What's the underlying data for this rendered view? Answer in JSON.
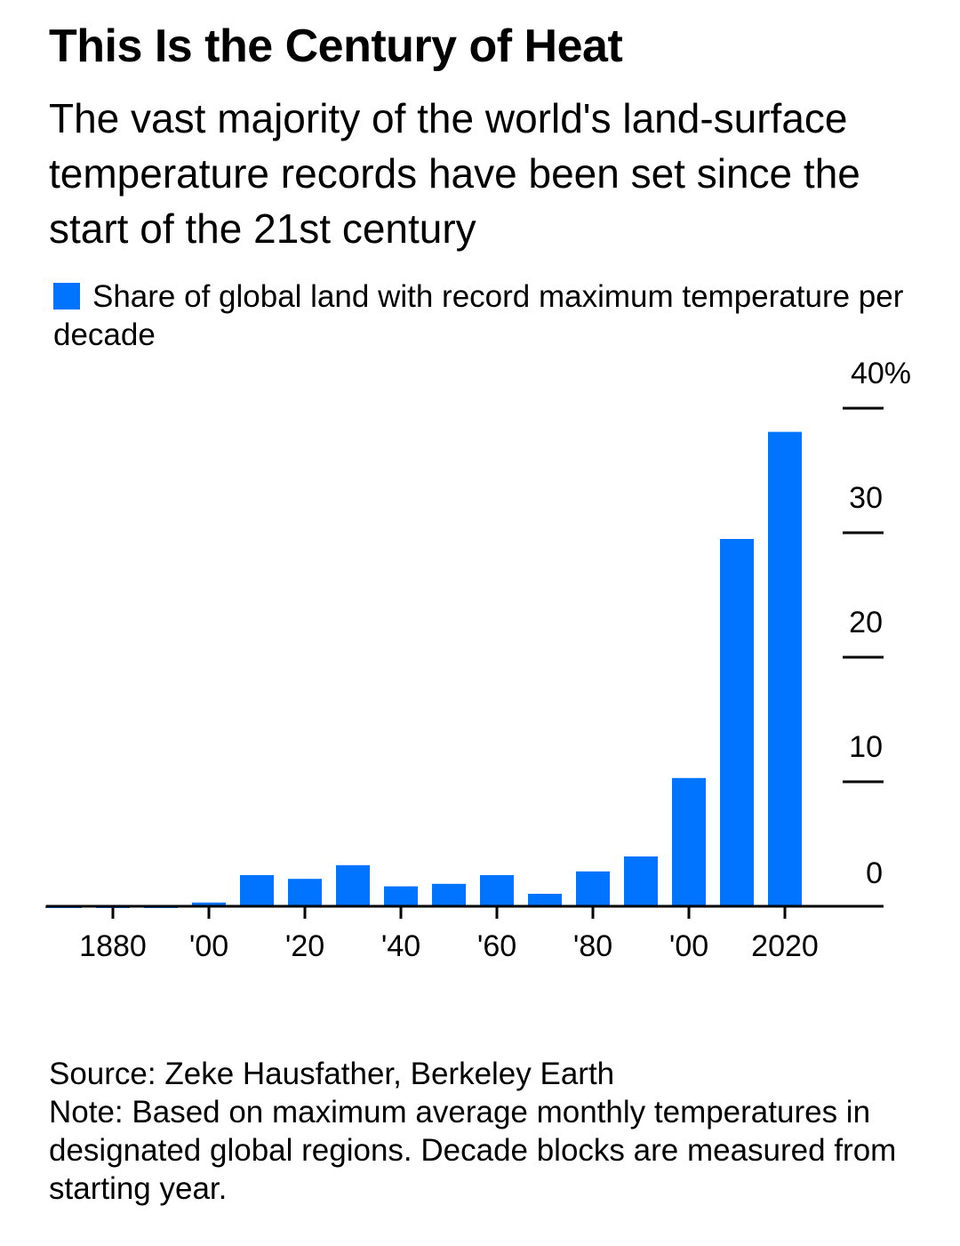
{
  "chart_data": {
    "type": "bar",
    "title": "This Is the Century of Heat",
    "subtitle": "The vast majority of the world's land-surface temperature records have been set since the start of the 21st century",
    "legend": [
      "Share of global land with record maximum temperature per decade"
    ],
    "categories": [
      1870,
      1880,
      1890,
      1900,
      1910,
      1920,
      1930,
      1940,
      1950,
      1960,
      1970,
      1980,
      1990,
      2000,
      2010,
      2020
    ],
    "values": [
      0.1,
      0.1,
      0.1,
      0.3,
      2.5,
      2.2,
      3.3,
      1.6,
      1.8,
      2.5,
      1.0,
      2.8,
      4.0,
      10.3,
      29.5,
      38.1
    ],
    "ylim": [
      0,
      40
    ],
    "yticks": [
      0,
      10,
      20,
      30,
      40
    ],
    "ytick_labels": [
      "0",
      "10",
      "20",
      "30",
      "40%"
    ],
    "xticks": [
      1880,
      1900,
      1920,
      1940,
      1960,
      1980,
      2000,
      2020
    ],
    "xtick_labels": [
      "1880",
      "'00",
      "'20",
      "'40",
      "'60",
      "'80",
      "'00",
      "2020"
    ],
    "ylabel_position": "right",
    "color": "#0073ff",
    "xlabel": "",
    "ylabel": ""
  },
  "footer": {
    "source": "Source: Zeke Hausfather, Berkeley Earth",
    "note": "Note: Based on maximum average monthly temperatures in designated global regions. Decade blocks are measured from starting year."
  }
}
